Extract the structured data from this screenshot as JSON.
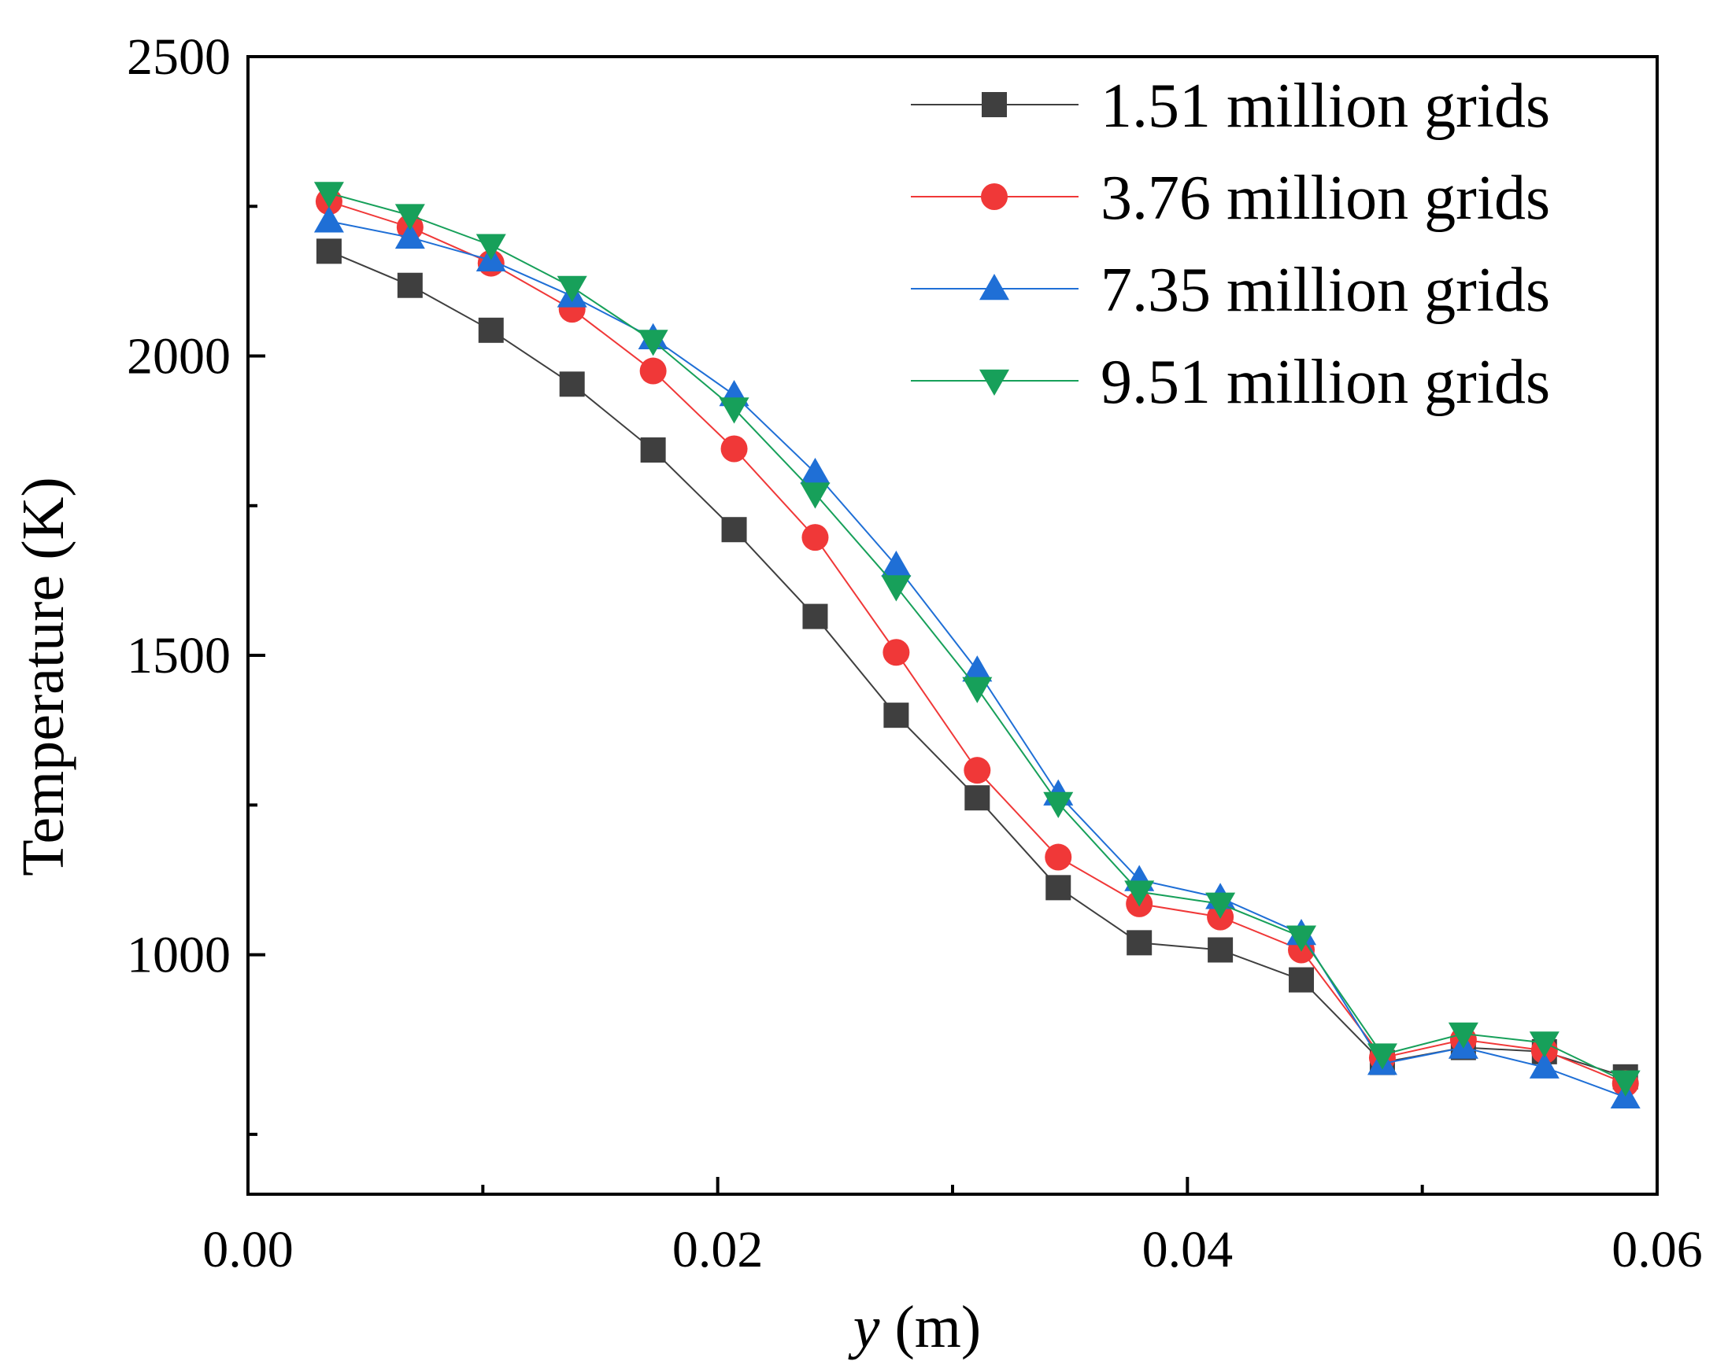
{
  "chart_data": {
    "type": "line",
    "xlabel_var": "y",
    "xlabel_unit": " (m)",
    "ylabel": "Temperature (K)",
    "xlim": [
      0.0,
      0.06
    ],
    "ylim": [
      600,
      2500
    ],
    "x_ticks": [
      "0.00",
      "0.02",
      "0.04",
      "0.06"
    ],
    "x_tick_values": [
      0.0,
      0.02,
      0.04,
      0.06
    ],
    "x_minor_ticks": [
      0.01,
      0.03,
      0.05
    ],
    "y_ticks": [
      "1000",
      "1500",
      "2000",
      "2500"
    ],
    "y_tick_values": [
      1000,
      1500,
      2000,
      2500
    ],
    "y_minor_ticks": [
      700,
      1250,
      1750,
      2250
    ],
    "grid": false,
    "legend_position": "top-right",
    "x": [
      0.00345,
      0.0069,
      0.01035,
      0.0138,
      0.01725,
      0.0207,
      0.02415,
      0.0276,
      0.03105,
      0.0345,
      0.03795,
      0.0414,
      0.04485,
      0.0483,
      0.05175,
      0.0552,
      0.05865
    ],
    "series": [
      {
        "name": "1.51 million grids",
        "color": "#3f3f3f",
        "marker": "square",
        "values": [
          2175,
          2118,
          2043,
          1953,
          1843,
          1710,
          1565,
          1400,
          1262,
          1112,
          1020,
          1008,
          958,
          820,
          845,
          838,
          796
        ]
      },
      {
        "name": "3.76 million grids",
        "color": "#f03838",
        "marker": "circle",
        "values": [
          2258,
          2215,
          2155,
          2078,
          1975,
          1845,
          1697,
          1505,
          1308,
          1163,
          1085,
          1063,
          1008,
          828,
          858,
          840,
          785
        ]
      },
      {
        "name": "7.35 million grids",
        "color": "#1f6fd6",
        "marker": "triangle-up",
        "values": [
          2225,
          2198,
          2160,
          2100,
          2030,
          1935,
          1805,
          1650,
          1475,
          1268,
          1125,
          1095,
          1035,
          818,
          845,
          812,
          762
        ]
      },
      {
        "name": "9.51 million grids",
        "color": "#17a05a",
        "marker": "triangle-down",
        "values": [
          2272,
          2235,
          2185,
          2115,
          2025,
          1912,
          1770,
          1615,
          1445,
          1253,
          1105,
          1085,
          1030,
          833,
          868,
          853,
          788
        ]
      }
    ]
  }
}
